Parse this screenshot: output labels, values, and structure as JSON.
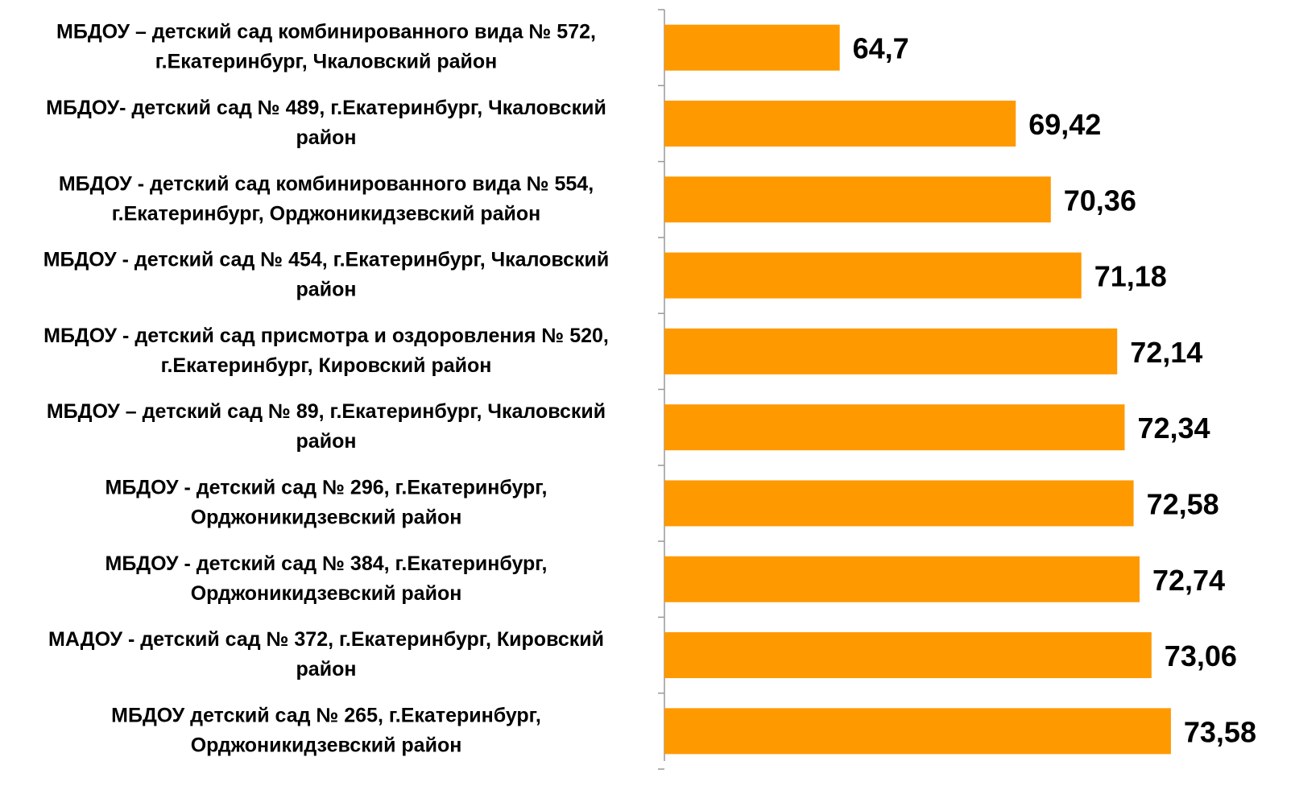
{
  "chart_data": {
    "type": "bar",
    "orientation": "horizontal",
    "categories": [
      [
        "МБДОУ – детский сад комбинированного вида № 572,",
        "г.Екатеринбург, Чкаловский  район"
      ],
      [
        "МБДОУ- детский сад № 489, г.Екатеринбург, Чкаловский",
        "район"
      ],
      [
        "МБДОУ - детский сад комбинированного вида  № 554,",
        "г.Екатеринбург, Орджоникидзевский  район"
      ],
      [
        "МБДОУ - детский сад № 454, г.Екатеринбург, Чкаловский",
        "район"
      ],
      [
        "МБДОУ - детский сад присмотра и оздоровления  № 520,",
        "г.Екатеринбург, Кировский  район"
      ],
      [
        "МБДОУ – детский сад № 89, г.Екатеринбург, Чкаловский",
        "район"
      ],
      [
        "МБДОУ - детский сад № 296, г.Екатеринбург,",
        "Орджоникидзевский  район"
      ],
      [
        "МБДОУ - детский сад № 384, г.Екатеринбург,",
        "Орджоникидзевский  район"
      ],
      [
        "МАДОУ - детский сад № 372, г.Екатеринбург, Кировский",
        "район"
      ],
      [
        "МБДОУ детский сад  № 265, г.Екатеринбург,",
        "Орджоникидзевский  район"
      ]
    ],
    "values": [
      64.7,
      69.42,
      70.36,
      71.18,
      72.14,
      72.34,
      72.58,
      72.74,
      73.06,
      73.58
    ],
    "value_labels": [
      "64,7",
      "69,42",
      "70,36",
      "71,18",
      "72,14",
      "72,34",
      "72,58",
      "72,74",
      "73,06",
      "73,58"
    ],
    "color": "#ff9900",
    "xlim": [
      60,
      76.8
    ]
  }
}
